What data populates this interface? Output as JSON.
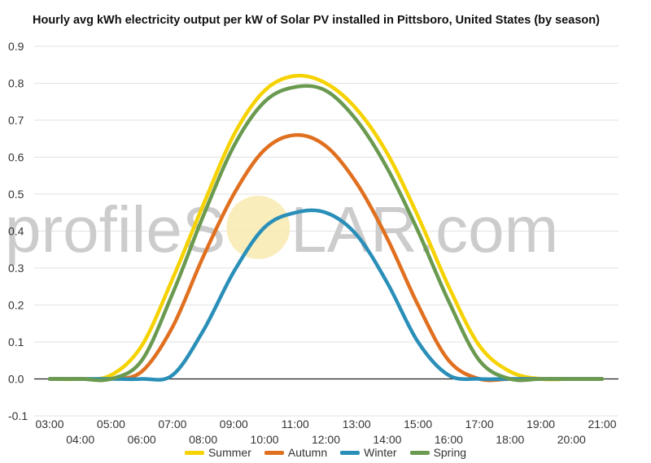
{
  "chart_data": {
    "type": "line",
    "title": "Hourly avg kWh electricity output per kW of Solar PV installed in Pittsboro, United States (by season)",
    "watermark": {
      "before": "profileS",
      "after": "LAR.com"
    },
    "x": [
      "03:00",
      "04:00",
      "05:00",
      "06:00",
      "07:00",
      "08:00",
      "09:00",
      "10:00",
      "11:00",
      "12:00",
      "13:00",
      "14:00",
      "15:00",
      "16:00",
      "17:00",
      "18:00",
      "19:00",
      "20:00",
      "21:00"
    ],
    "ylim": [
      -0.1,
      0.9
    ],
    "yticks": [
      "0.9",
      "0.8",
      "0.7",
      "0.6",
      "0.5",
      "0.4",
      "0.3",
      "0.2",
      "0.1",
      "0.0",
      "-0.1"
    ],
    "legend_position": "bottom",
    "grid": true,
    "series": [
      {
        "name": "Summer",
        "color": "#f5d200",
        "values": [
          0,
          0,
          0.01,
          0.09,
          0.27,
          0.47,
          0.66,
          0.78,
          0.82,
          0.8,
          0.73,
          0.61,
          0.44,
          0.25,
          0.09,
          0.02,
          0,
          0,
          0
        ]
      },
      {
        "name": "Autumn",
        "color": "#e07020",
        "values": [
          0,
          0,
          0,
          0.02,
          0.14,
          0.33,
          0.5,
          0.62,
          0.66,
          0.63,
          0.53,
          0.38,
          0.2,
          0.05,
          0,
          0,
          0,
          0,
          0
        ]
      },
      {
        "name": "Winter",
        "color": "#2a8fb8",
        "values": [
          0,
          0,
          0,
          0,
          0.01,
          0.13,
          0.29,
          0.41,
          0.45,
          0.45,
          0.39,
          0.26,
          0.1,
          0.01,
          0,
          0,
          0,
          0,
          0
        ]
      },
      {
        "name": "Spring",
        "color": "#6a9a50",
        "values": [
          0,
          0,
          0,
          0.05,
          0.23,
          0.44,
          0.63,
          0.75,
          0.79,
          0.78,
          0.7,
          0.57,
          0.4,
          0.21,
          0.05,
          0,
          0,
          0,
          0
        ]
      }
    ]
  }
}
